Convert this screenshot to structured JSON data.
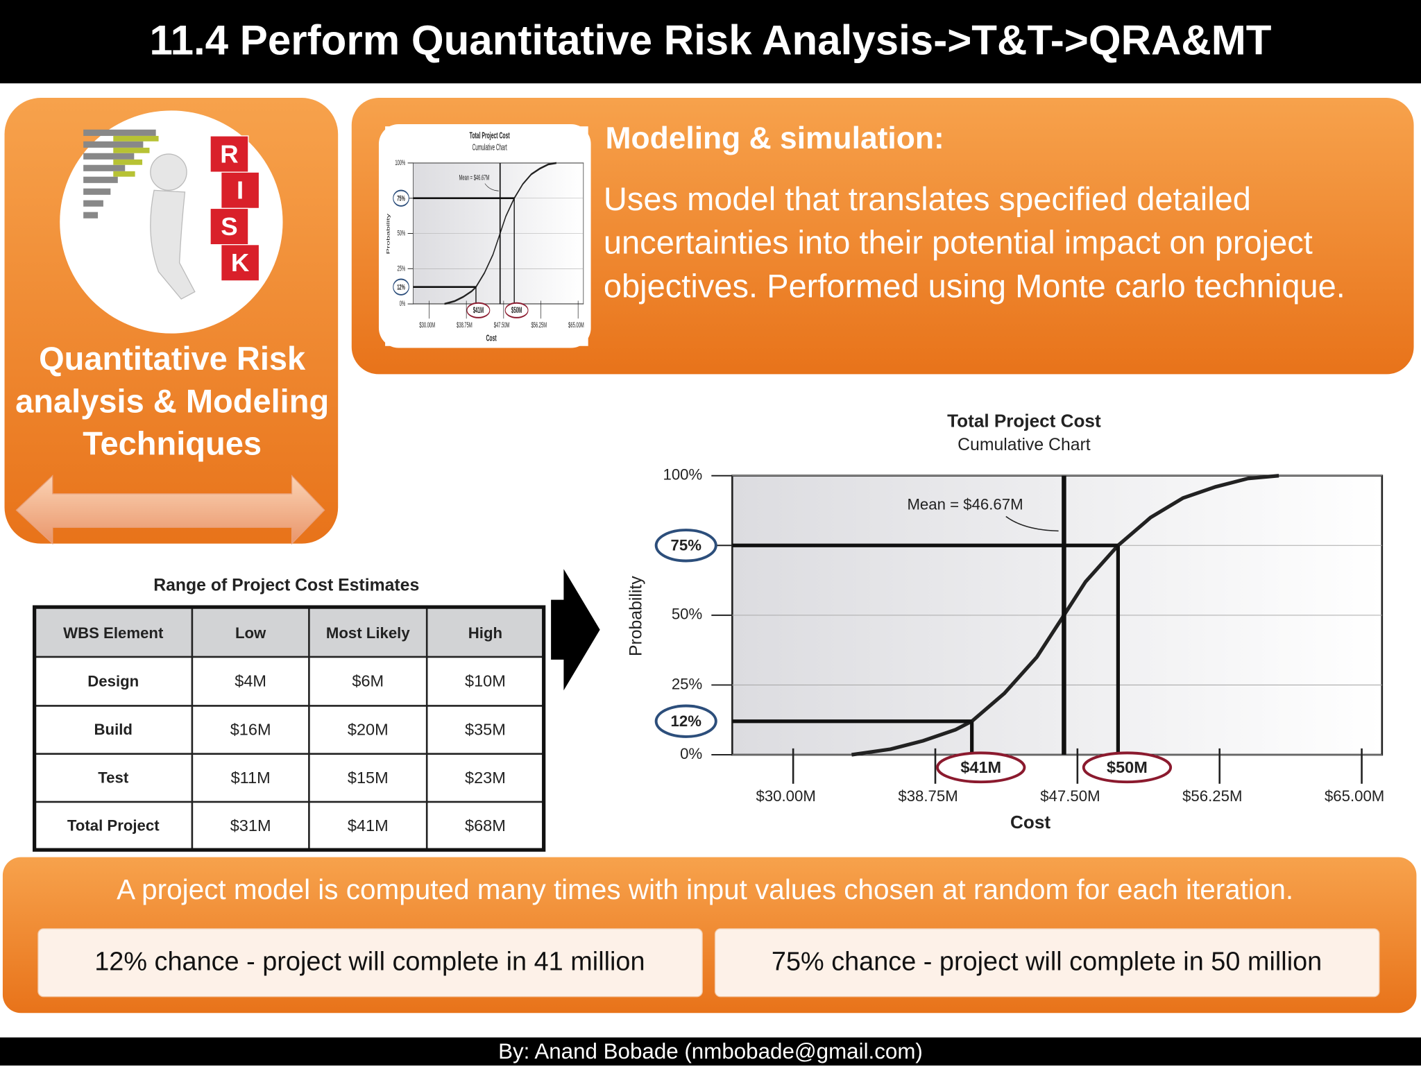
{
  "header": {
    "title": "11.4 Perform Quantitative Risk Analysis->T&T->QRA&MT"
  },
  "side_panel": {
    "title": "Quantitative Risk analysis & Modeling Techniques",
    "image_letters": [
      "R",
      "I",
      "S",
      "K"
    ]
  },
  "modeling": {
    "heading": "Modeling & simulation:",
    "text": "Uses model that translates specified detailed uncertainties into their potential impact on project objectives. Performed using Monte carlo technique."
  },
  "table": {
    "title": "Range of Project Cost Estimates",
    "columns": [
      "WBS Element",
      "Low",
      "Most Likely",
      "High"
    ],
    "rows": [
      [
        "Design",
        "$4M",
        "$6M",
        "$10M"
      ],
      [
        "Build",
        "$16M",
        "$20M",
        "$35M"
      ],
      [
        "Test",
        "$11M",
        "$15M",
        "$23M"
      ],
      [
        "Total Project",
        "$31M",
        "$41M",
        "$68M"
      ]
    ]
  },
  "chart_data": {
    "type": "line",
    "title": "Total Project Cost",
    "subtitle": "Cumulative Chart",
    "x_label": "Cost",
    "y_label": "Probability",
    "xlim": [
      26.25,
      66.25
    ],
    "xticks": [
      {
        "value": 30,
        "label": "$30.00M"
      },
      {
        "value": 38.75,
        "label": "$38.75M"
      },
      {
        "value": 47.5,
        "label": "$47.50M"
      },
      {
        "value": 56.25,
        "label": "$56.25M"
      },
      {
        "value": 65,
        "label": "$65.00M"
      }
    ],
    "ylim": [
      0,
      100
    ],
    "yticks": [
      {
        "value": 0,
        "label": "0%"
      },
      {
        "value": 25,
        "label": "25%"
      },
      {
        "value": 50,
        "label": "50%"
      },
      {
        "value": 75,
        "label": "75%"
      },
      {
        "value": 100,
        "label": "100%"
      }
    ],
    "grid": true,
    "series": [
      {
        "color": "#222222",
        "x": [
          33.6,
          36,
          38,
          40,
          41,
          43,
          45,
          46.67,
          48,
          50,
          52,
          54,
          56,
          58,
          59.9
        ],
        "values": [
          0,
          2,
          5,
          9,
          12,
          22,
          35,
          50,
          62,
          75,
          85,
          92,
          96,
          99,
          100
        ]
      }
    ],
    "mean": {
      "value": 46.67,
      "label": "Mean = $46.67M"
    },
    "markers": [
      {
        "x": 41,
        "x_label": "$41M",
        "y": 12,
        "y_label": "12%"
      },
      {
        "x": 50,
        "x_label": "$50M",
        "y": 75,
        "y_label": "75%"
      }
    ]
  },
  "summary": {
    "text": "A project model is computed many times with input values chosen at random for each iteration.",
    "boxes": [
      "12% chance - project will complete in 41 million",
      "75% chance - project will complete in 50 million"
    ]
  },
  "footer": {
    "text": "By: Anand Bobade (nmbobade@gmail.com)"
  }
}
